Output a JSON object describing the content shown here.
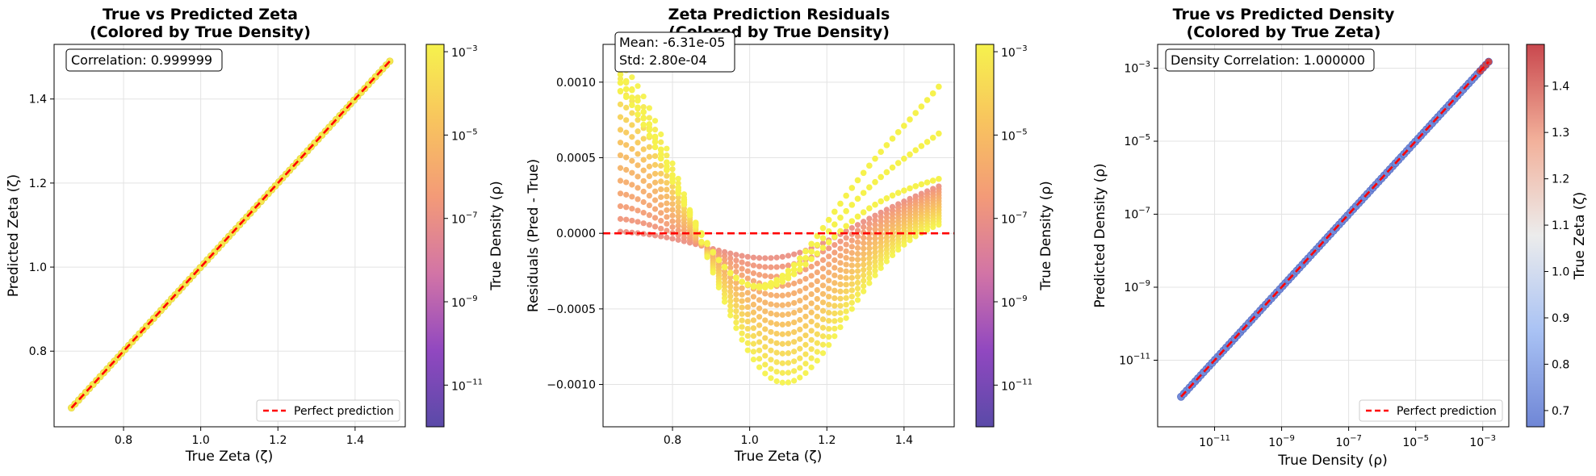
{
  "chart_data": [
    {
      "id": "zeta",
      "type": "scatter",
      "title": [
        "True vs Predicted Zeta",
        "(Colored by True Density)"
      ],
      "xlabel": "True Zeta (ζ)",
      "ylabel": "Predicted Zeta (ζ)",
      "xlim": [
        0.62,
        1.53
      ],
      "ylim": [
        0.62,
        1.53
      ],
      "xticks": [
        0.8,
        1.0,
        1.2,
        1.4
      ],
      "xtick_labels": [
        "0.8",
        "1.0",
        "1.2",
        "1.4"
      ],
      "yticks": [
        0.8,
        1.0,
        1.2,
        1.4
      ],
      "ytick_labels": [
        "0.8",
        "1.0",
        "1.2",
        "1.4"
      ],
      "grid": true,
      "annotation": "Correlation: 0.999999",
      "legend": {
        "position": "lower-right",
        "entries": [
          "Perfect prediction"
        ]
      },
      "reference_line": {
        "x": [
          0.665,
          1.49
        ],
        "y": [
          0.665,
          1.49
        ],
        "color": "#ff0000",
        "style": "dashed"
      },
      "points": {
        "x_range": [
          0.665,
          1.49
        ],
        "colormap": "plasma"
      },
      "colorbar": {
        "label": "True Density (ρ)",
        "scale": "log",
        "range": [
          1e-12,
          0.0015
        ],
        "ticks": [
          1e-11,
          1e-09,
          1e-07,
          1e-05,
          0.001
        ],
        "tick_exponents": [
          "-11",
          "-9",
          "-7",
          "-5",
          "-3"
        ],
        "colormap": "plasma"
      }
    },
    {
      "id": "residuals",
      "type": "scatter",
      "title": [
        "Zeta Prediction Residuals",
        "(Colored by True Density)"
      ],
      "xlabel": "True Zeta (ζ)",
      "ylabel": "Residuals (Pred - True)",
      "xlim": [
        0.62,
        1.53
      ],
      "ylim": [
        -0.00128,
        0.00125
      ],
      "xticks": [
        0.8,
        1.0,
        1.2,
        1.4
      ],
      "xtick_labels": [
        "0.8",
        "1.0",
        "1.2",
        "1.4"
      ],
      "yticks": [
        -0.001,
        -0.0005,
        0.0,
        0.0005,
        0.001
      ],
      "ytick_labels": [
        "−0.0010",
        "−0.0005",
        "0.0000",
        "0.0005",
        "0.0010"
      ],
      "grid": true,
      "annotation": [
        "Mean: -6.31e-05",
        "Std: 2.80e-04"
      ],
      "reference_line": {
        "y": 0.0,
        "color": "#ff0000",
        "style": "dashed"
      },
      "points": {
        "x_range": [
          0.665,
          1.49
        ],
        "curves": 14,
        "colormap": "plasma"
      },
      "colorbar": {
        "label": "True Density (ρ)",
        "scale": "log",
        "range": [
          1e-12,
          0.0015
        ],
        "ticks": [
          1e-11,
          1e-09,
          1e-07,
          1e-05,
          0.001
        ],
        "tick_exponents": [
          "-11",
          "-9",
          "-7",
          "-5",
          "-3"
        ],
        "colormap": "plasma"
      }
    },
    {
      "id": "density",
      "type": "scatter",
      "title": [
        "True vs Predicted Density",
        "(Colored by True Zeta)"
      ],
      "xlabel": "True Density (ρ)",
      "ylabel": "Predicted Density (ρ)",
      "xscale": "log",
      "yscale": "log",
      "xlim": [
        2e-13,
        0.006
      ],
      "ylim": [
        1.5e-13,
        0.0045
      ],
      "xticks": [
        1e-11,
        1e-09,
        1e-07,
        1e-05,
        0.001
      ],
      "xtick_exponents": [
        "-11",
        "-9",
        "-7",
        "-5",
        "-3"
      ],
      "yticks": [
        1e-11,
        1e-09,
        1e-07,
        1e-05,
        0.001
      ],
      "ytick_exponents": [
        "-11",
        "-9",
        "-7",
        "-5",
        "-3"
      ],
      "grid": true,
      "annotation": "Density Correlation: 1.000000",
      "legend": {
        "position": "lower-right",
        "entries": [
          "Perfect prediction"
        ]
      },
      "reference_line": {
        "x": [
          1e-12,
          0.0015
        ],
        "y": [
          1e-12,
          0.0015
        ],
        "color": "#ff0000",
        "style": "dashed"
      },
      "points": {
        "x_range": [
          1e-12,
          0.0015
        ],
        "colormap": "coolwarm"
      },
      "colorbar": {
        "label": "True Zeta (ζ)",
        "scale": "linear",
        "range": [
          0.665,
          1.49
        ],
        "ticks": [
          0.7,
          0.8,
          0.9,
          1.0,
          1.1,
          1.2,
          1.3,
          1.4
        ],
        "tick_labels": [
          "0.7",
          "0.8",
          "0.9",
          "1.0",
          "1.1",
          "1.2",
          "1.3",
          "1.4"
        ],
        "colormap": "coolwarm"
      }
    }
  ],
  "base_label": "10",
  "colormaps": {
    "plasma": [
      "#5a4aa8",
      "#9148c0",
      "#d274a6",
      "#f39a78",
      "#f8c45e",
      "#f6f24d"
    ],
    "coolwarm": [
      "#6f86d6",
      "#a9c2f4",
      "#ececec",
      "#f2b09a",
      "#c9484e"
    ]
  }
}
